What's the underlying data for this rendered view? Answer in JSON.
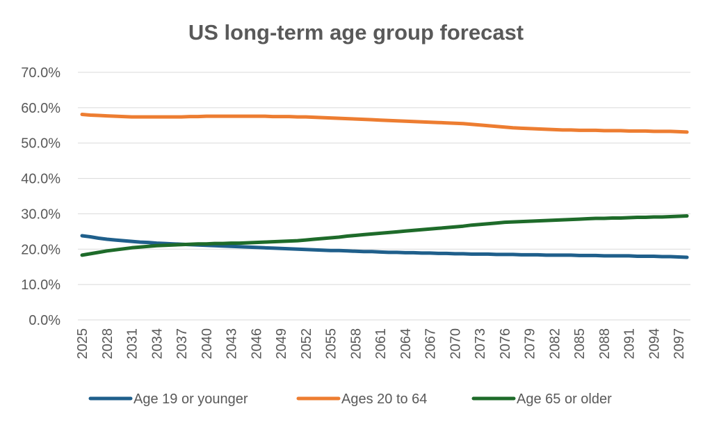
{
  "chart_data": {
    "type": "line",
    "title": "US long-term age group forecast",
    "xlabel": "",
    "ylabel": "",
    "y_tick_labels": [
      "0.0%",
      "10.0%",
      "20.0%",
      "30.0%",
      "40.0%",
      "50.0%",
      "60.0%",
      "70.0%"
    ],
    "ylim": [
      0,
      0.7
    ],
    "grid": true,
    "legend_position": "bottom",
    "categories": [
      "2025",
      "2026",
      "2027",
      "2028",
      "2029",
      "2030",
      "2031",
      "2032",
      "2033",
      "2034",
      "2035",
      "2036",
      "2037",
      "2038",
      "2039",
      "2040",
      "2041",
      "2042",
      "2043",
      "2044",
      "2045",
      "2046",
      "2047",
      "2048",
      "2049",
      "2050",
      "2051",
      "2052",
      "2053",
      "2054",
      "2055",
      "2056",
      "2057",
      "2058",
      "2059",
      "2060",
      "2061",
      "2062",
      "2063",
      "2064",
      "2065",
      "2066",
      "2067",
      "2068",
      "2069",
      "2070",
      "2071",
      "2072",
      "2073",
      "2074",
      "2075",
      "2076",
      "2077",
      "2078",
      "2079",
      "2080",
      "2081",
      "2082",
      "2083",
      "2084",
      "2085",
      "2086",
      "2087",
      "2088",
      "2089",
      "2090",
      "2091",
      "2092",
      "2093",
      "2094",
      "2095",
      "2096",
      "2097",
      "2098"
    ],
    "x_tick_labels": [
      "2025",
      "2028",
      "2031",
      "2034",
      "2037",
      "2040",
      "2043",
      "2046",
      "2049",
      "2052",
      "2055",
      "2058",
      "2061",
      "2064",
      "2067",
      "2070",
      "2073",
      "2076",
      "2079",
      "2082",
      "2085",
      "2088",
      "2091",
      "2094",
      "2097"
    ],
    "series": [
      {
        "name": "Age 19 or younger",
        "color": "#1f5f8b",
        "values": [
          0.238,
          0.235,
          0.231,
          0.228,
          0.226,
          0.224,
          0.222,
          0.22,
          0.219,
          0.217,
          0.216,
          0.215,
          0.214,
          0.213,
          0.212,
          0.211,
          0.21,
          0.209,
          0.208,
          0.207,
          0.206,
          0.205,
          0.204,
          0.203,
          0.202,
          0.201,
          0.2,
          0.199,
          0.198,
          0.197,
          0.196,
          0.196,
          0.195,
          0.194,
          0.193,
          0.193,
          0.192,
          0.191,
          0.191,
          0.19,
          0.19,
          0.189,
          0.189,
          0.188,
          0.188,
          0.187,
          0.187,
          0.186,
          0.186,
          0.186,
          0.185,
          0.185,
          0.185,
          0.184,
          0.184,
          0.184,
          0.183,
          0.183,
          0.183,
          0.183,
          0.182,
          0.182,
          0.182,
          0.181,
          0.181,
          0.181,
          0.181,
          0.18,
          0.18,
          0.18,
          0.179,
          0.179,
          0.178,
          0.177
        ]
      },
      {
        "name": "Ages 20 to 64",
        "color": "#ed7d31",
        "values": [
          0.581,
          0.579,
          0.578,
          0.577,
          0.576,
          0.575,
          0.574,
          0.574,
          0.574,
          0.574,
          0.574,
          0.574,
          0.574,
          0.575,
          0.575,
          0.576,
          0.576,
          0.576,
          0.576,
          0.576,
          0.576,
          0.576,
          0.576,
          0.575,
          0.575,
          0.575,
          0.574,
          0.574,
          0.573,
          0.572,
          0.571,
          0.57,
          0.569,
          0.568,
          0.567,
          0.566,
          0.565,
          0.564,
          0.563,
          0.562,
          0.561,
          0.56,
          0.559,
          0.558,
          0.557,
          0.556,
          0.555,
          0.553,
          0.551,
          0.549,
          0.547,
          0.545,
          0.543,
          0.542,
          0.541,
          0.54,
          0.539,
          0.538,
          0.537,
          0.537,
          0.536,
          0.536,
          0.536,
          0.535,
          0.535,
          0.535,
          0.534,
          0.534,
          0.534,
          0.533,
          0.533,
          0.533,
          0.532,
          0.531
        ]
      },
      {
        "name": "Age 65 or older",
        "color": "#1e6b2a",
        "values": [
          0.183,
          0.187,
          0.191,
          0.195,
          0.198,
          0.201,
          0.204,
          0.206,
          0.208,
          0.21,
          0.211,
          0.212,
          0.213,
          0.214,
          0.215,
          0.215,
          0.216,
          0.216,
          0.217,
          0.217,
          0.218,
          0.219,
          0.22,
          0.221,
          0.222,
          0.223,
          0.224,
          0.226,
          0.228,
          0.23,
          0.232,
          0.234,
          0.237,
          0.239,
          0.241,
          0.243,
          0.245,
          0.247,
          0.249,
          0.251,
          0.253,
          0.255,
          0.257,
          0.259,
          0.261,
          0.263,
          0.265,
          0.268,
          0.27,
          0.272,
          0.274,
          0.276,
          0.277,
          0.278,
          0.279,
          0.28,
          0.281,
          0.282,
          0.283,
          0.284,
          0.285,
          0.286,
          0.287,
          0.287,
          0.288,
          0.288,
          0.289,
          0.29,
          0.29,
          0.291,
          0.291,
          0.292,
          0.293,
          0.294
        ]
      }
    ]
  }
}
